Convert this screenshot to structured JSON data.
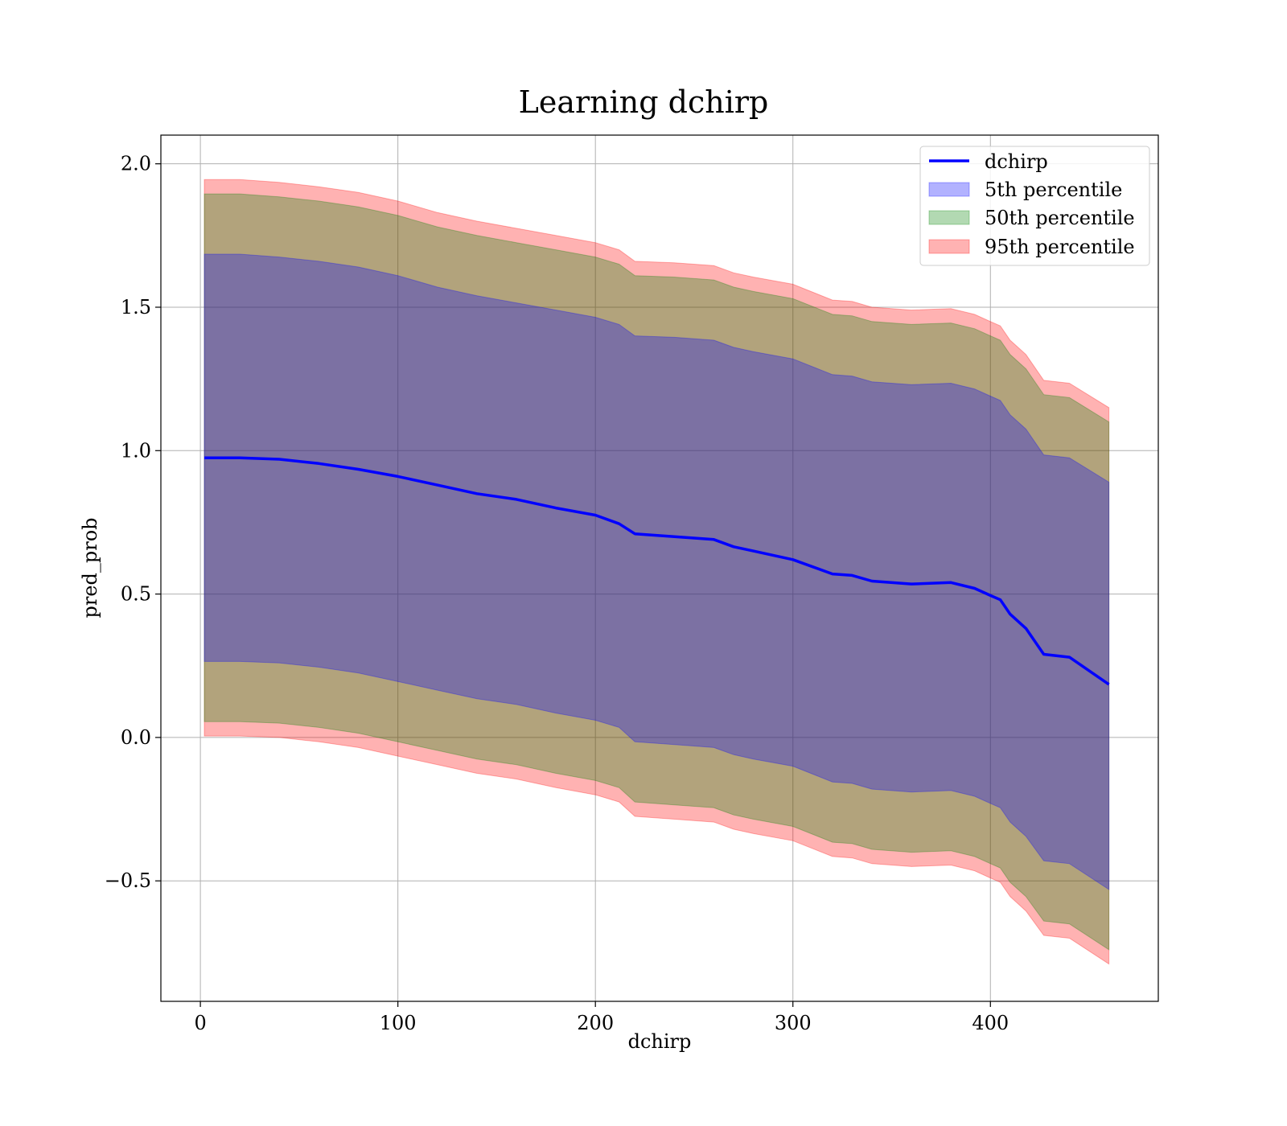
{
  "chart_data": {
    "type": "area",
    "title": "Learning dchirp",
    "xlabel": "dchirp",
    "ylabel": "pred_prob",
    "xlim": [
      -20,
      485
    ],
    "ylim": [
      -0.92,
      2.1
    ],
    "x_ticks": [
      0,
      100,
      200,
      300,
      400
    ],
    "x_tick_labels": [
      "0",
      "100",
      "200",
      "300",
      "400"
    ],
    "y_ticks": [
      -0.5,
      0.0,
      0.5,
      1.0,
      1.5,
      2.0
    ],
    "y_tick_labels": [
      "−0.5",
      "0.0",
      "0.5",
      "1.0",
      "1.5",
      "2.0"
    ],
    "grid": true,
    "legend_position": "top-right",
    "legend": [
      "dchirp",
      "5th percentile",
      "50th percentile",
      "95th percentile"
    ],
    "x": [
      2,
      20,
      40,
      60,
      80,
      100,
      120,
      140,
      160,
      180,
      200,
      212,
      220,
      240,
      260,
      270,
      280,
      300,
      320,
      330,
      340,
      360,
      380,
      392,
      400,
      405,
      410,
      418,
      427,
      440,
      460
    ],
    "series": [
      {
        "name": "dchirp",
        "kind": "line",
        "color": "#0000ff",
        "values": [
          0.975,
          0.975,
          0.97,
          0.955,
          0.935,
          0.91,
          0.88,
          0.85,
          0.83,
          0.8,
          0.775,
          0.745,
          0.71,
          0.7,
          0.69,
          0.665,
          0.65,
          0.62,
          0.57,
          0.565,
          0.545,
          0.535,
          0.54,
          0.52,
          0.495,
          0.48,
          0.43,
          0.38,
          0.29,
          0.28,
          0.185
        ]
      },
      {
        "name": "5th percentile",
        "kind": "band",
        "color": "#0000ff",
        "upper": [
          1.685,
          1.685,
          1.675,
          1.66,
          1.64,
          1.61,
          1.57,
          1.54,
          1.515,
          1.49,
          1.465,
          1.44,
          1.4,
          1.395,
          1.385,
          1.36,
          1.345,
          1.32,
          1.265,
          1.26,
          1.24,
          1.23,
          1.235,
          1.215,
          1.19,
          1.175,
          1.125,
          1.075,
          0.985,
          0.975,
          0.89
        ],
        "lower": [
          0.265,
          0.265,
          0.26,
          0.245,
          0.225,
          0.195,
          0.165,
          0.135,
          0.115,
          0.085,
          0.06,
          0.035,
          -0.015,
          -0.025,
          -0.035,
          -0.06,
          -0.075,
          -0.1,
          -0.155,
          -0.16,
          -0.18,
          -0.19,
          -0.185,
          -0.205,
          -0.23,
          -0.245,
          -0.295,
          -0.345,
          -0.43,
          -0.44,
          -0.53
        ]
      },
      {
        "name": "50th percentile",
        "kind": "band",
        "color": "#008000",
        "upper": [
          1.895,
          1.895,
          1.885,
          1.87,
          1.85,
          1.82,
          1.78,
          1.75,
          1.725,
          1.7,
          1.675,
          1.65,
          1.61,
          1.605,
          1.595,
          1.57,
          1.555,
          1.53,
          1.475,
          1.47,
          1.45,
          1.44,
          1.445,
          1.425,
          1.4,
          1.385,
          1.335,
          1.285,
          1.195,
          1.185,
          1.1
        ],
        "lower": [
          0.055,
          0.055,
          0.05,
          0.035,
          0.015,
          -0.015,
          -0.045,
          -0.075,
          -0.095,
          -0.125,
          -0.15,
          -0.175,
          -0.225,
          -0.235,
          -0.245,
          -0.27,
          -0.285,
          -0.31,
          -0.365,
          -0.37,
          -0.39,
          -0.4,
          -0.395,
          -0.415,
          -0.44,
          -0.455,
          -0.505,
          -0.555,
          -0.64,
          -0.65,
          -0.74
        ]
      },
      {
        "name": "95th percentile",
        "kind": "band",
        "color": "#ff0000",
        "upper": [
          1.945,
          1.945,
          1.935,
          1.92,
          1.9,
          1.87,
          1.83,
          1.8,
          1.775,
          1.75,
          1.725,
          1.7,
          1.66,
          1.655,
          1.645,
          1.62,
          1.605,
          1.58,
          1.525,
          1.52,
          1.5,
          1.49,
          1.495,
          1.475,
          1.45,
          1.435,
          1.385,
          1.335,
          1.245,
          1.235,
          1.15
        ],
        "lower": [
          0.005,
          0.005,
          0.0,
          -0.015,
          -0.035,
          -0.065,
          -0.095,
          -0.125,
          -0.145,
          -0.175,
          -0.2,
          -0.225,
          -0.275,
          -0.285,
          -0.295,
          -0.32,
          -0.335,
          -0.36,
          -0.415,
          -0.42,
          -0.44,
          -0.45,
          -0.445,
          -0.465,
          -0.49,
          -0.505,
          -0.555,
          -0.605,
          -0.69,
          -0.7,
          -0.79
        ]
      }
    ]
  }
}
